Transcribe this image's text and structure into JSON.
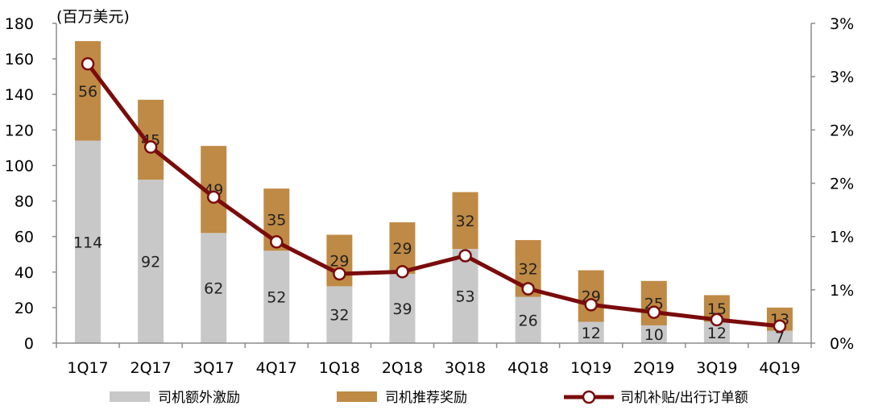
{
  "chart_data": {
    "type": "bar",
    "unit_label": "(百万美元)",
    "categories": [
      "1Q17",
      "2Q17",
      "3Q17",
      "4Q17",
      "1Q18",
      "2Q18",
      "3Q18",
      "4Q18",
      "1Q19",
      "2Q19",
      "3Q19",
      "4Q19"
    ],
    "series": [
      {
        "name": "司机额外激励",
        "type": "bar",
        "stack": "a",
        "color": "#c8c8c8",
        "values": [
          114,
          92,
          62,
          52,
          32,
          39,
          53,
          26,
          12,
          10,
          12,
          7
        ]
      },
      {
        "name": "司机推荐奖励",
        "type": "bar",
        "stack": "a",
        "color": "#bf8a45",
        "values": [
          56,
          45,
          49,
          35,
          29,
          29,
          32,
          32,
          29,
          25,
          15,
          13
        ]
      },
      {
        "name": "司机补贴/出行订单额",
        "type": "line",
        "axis": "right",
        "color": "#7a0c0c",
        "values": [
          0.0262,
          0.0184,
          0.0137,
          0.0095,
          0.0065,
          0.0067,
          0.0082,
          0.0051,
          0.0036,
          0.0029,
          0.0022,
          0.0016
        ]
      }
    ],
    "yleft": {
      "min": 0,
      "max": 180,
      "ticks": [
        "0",
        "20",
        "40",
        "60",
        "80",
        "100",
        "120",
        "140",
        "160",
        "180"
      ]
    },
    "yright": {
      "min": 0,
      "max": 0.03,
      "ticks": [
        "0%",
        "1%",
        "1%",
        "2%",
        "2%",
        "3%",
        "3%"
      ]
    },
    "legend_position": "bottom",
    "grid": false
  }
}
